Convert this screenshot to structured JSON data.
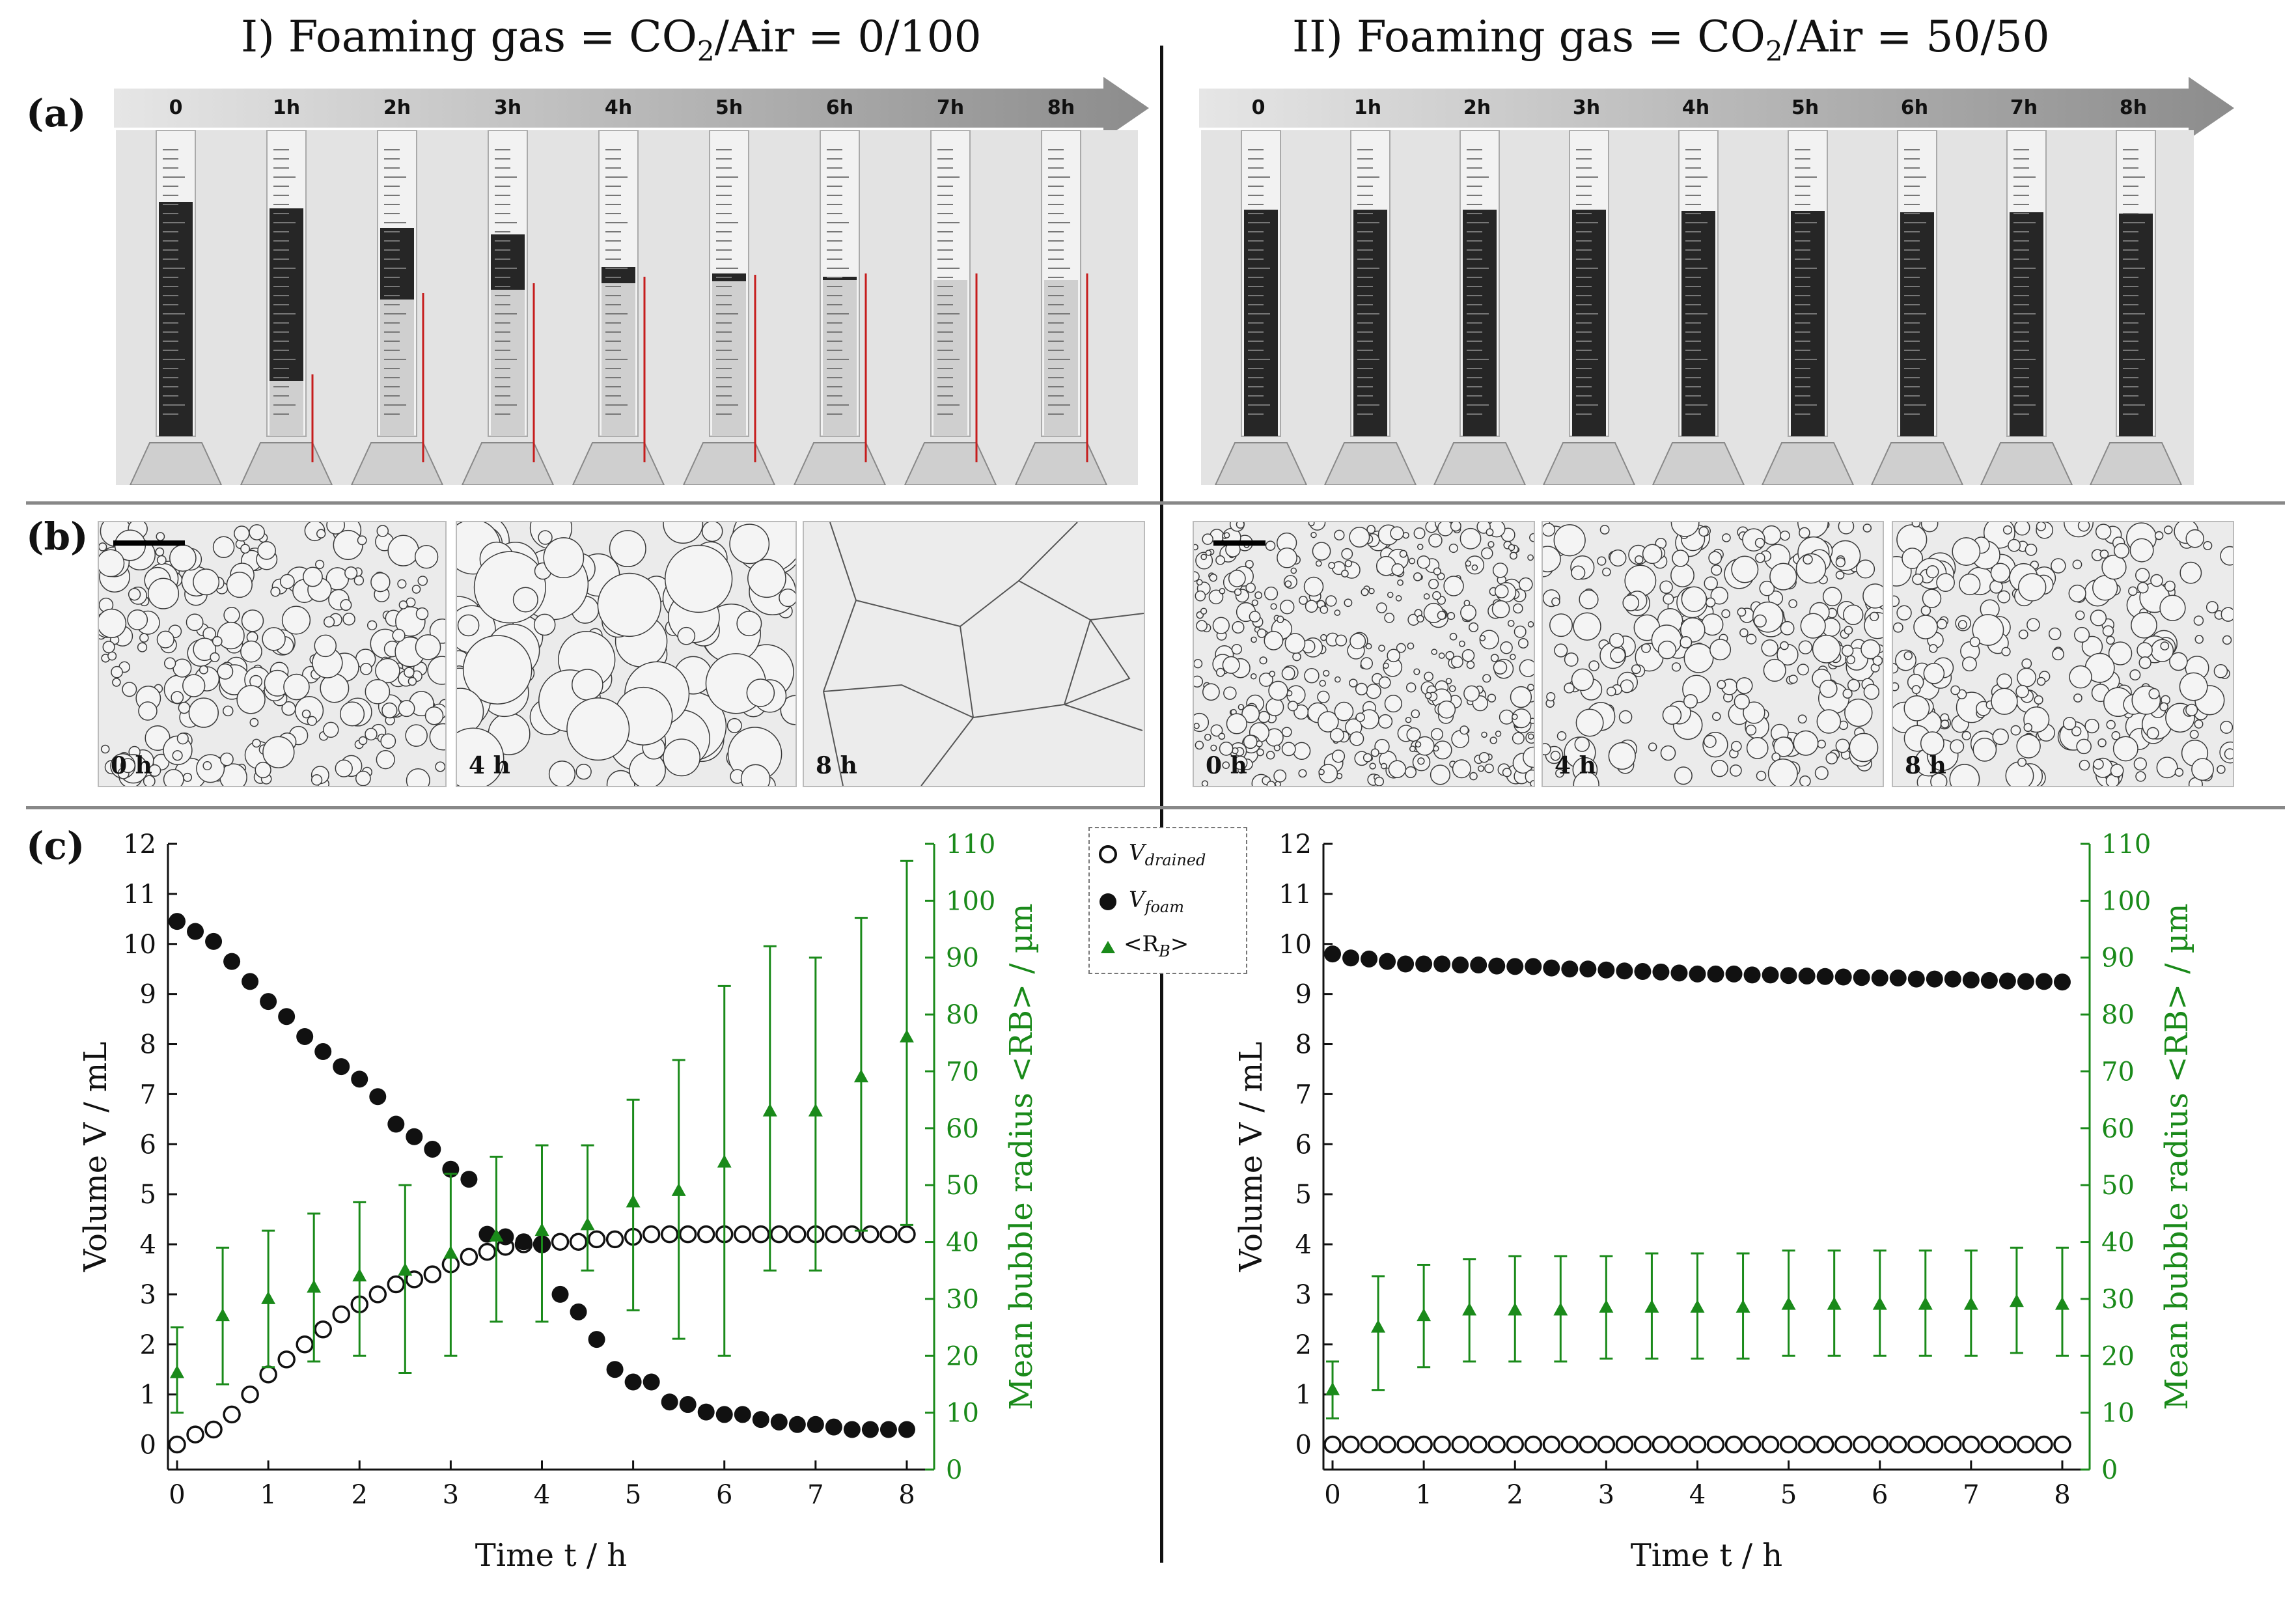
{
  "titles": {
    "left_prefix": "I) Foaming gas = ",
    "left_formula_base": "CO",
    "left_formula_sub": "2",
    "left_formula_rest": "/Air = 0/100",
    "right_prefix": "II) Foaming gas = ",
    "right_formula_base": "CO",
    "right_formula_sub": "2",
    "right_formula_rest": "/Air = 50/50"
  },
  "panels": {
    "a": "(a)",
    "b": "(b)",
    "c": "(c)"
  },
  "timeline_ticks": [
    "0",
    "1h",
    "2h",
    "3h",
    "4h",
    "5h",
    "6h",
    "7h",
    "8h"
  ],
  "micrographs": {
    "left": [
      "0 h",
      "4 h",
      "8 h"
    ],
    "right": [
      "0 h",
      "4 h",
      "8 h"
    ]
  },
  "colors": {
    "green": "#1a8a1a",
    "black": "#111111"
  },
  "legend": {
    "drained_base": "V",
    "drained_sub": "drained",
    "foam_base": "V",
    "foam_sub": "foam",
    "rb_label_a": "<R",
    "rb_label_sub": "B",
    "rb_label_b": ">"
  },
  "chart_data": [
    {
      "type": "scatter",
      "title": "CO2/Air = 0/100",
      "xlabel": "Time t / h",
      "ylabel": "Volume V / mL",
      "y2label": "Mean bubble radius <RB> / µm",
      "xlim": [
        -0.1,
        8.3
      ],
      "ylim": [
        -0.5,
        12
      ],
      "y2lim": [
        0,
        110
      ],
      "xticks": [
        0,
        1,
        2,
        3,
        4,
        5,
        6,
        7,
        8
      ],
      "yticks": [
        0,
        1,
        2,
        3,
        4,
        5,
        6,
        7,
        8,
        9,
        10,
        11,
        12
      ],
      "y2ticks": [
        0,
        10,
        20,
        30,
        40,
        50,
        60,
        70,
        80,
        90,
        100,
        110
      ],
      "series": [
        {
          "name": "V_drained",
          "x": [
            0,
            0.2,
            0.4,
            0.6,
            0.8,
            1.0,
            1.2,
            1.4,
            1.6,
            1.8,
            2.0,
            2.2,
            2.4,
            2.6,
            2.8,
            3.0,
            3.2,
            3.4,
            3.6,
            3.8,
            4.0,
            4.2,
            4.4,
            4.6,
            4.8,
            5.0,
            5.2,
            5.4,
            5.6,
            5.8,
            6.0,
            6.2,
            6.4,
            6.6,
            6.8,
            7.0,
            7.2,
            7.4,
            7.6,
            7.8,
            8.0
          ],
          "values": [
            0,
            0.2,
            0.3,
            0.6,
            1.0,
            1.4,
            1.7,
            2.0,
            2.3,
            2.6,
            2.8,
            3.0,
            3.2,
            3.3,
            3.4,
            3.6,
            3.75,
            3.85,
            3.95,
            4.0,
            4.0,
            4.05,
            4.05,
            4.1,
            4.1,
            4.15,
            4.2,
            4.2,
            4.2,
            4.2,
            4.2,
            4.2,
            4.2,
            4.2,
            4.2,
            4.2,
            4.2,
            4.2,
            4.2,
            4.2,
            4.2
          ]
        },
        {
          "name": "V_foam",
          "x": [
            0,
            0.2,
            0.4,
            0.6,
            0.8,
            1.0,
            1.2,
            1.4,
            1.6,
            1.8,
            2.0,
            2.2,
            2.4,
            2.6,
            2.8,
            3.0,
            3.2,
            3.4,
            3.6,
            3.8,
            4.0,
            4.2,
            4.4,
            4.6,
            4.8,
            5.0,
            5.2,
            5.4,
            5.6,
            5.8,
            6.0,
            6.2,
            6.4,
            6.6,
            6.8,
            7.0,
            7.2,
            7.4,
            7.6,
            7.8,
            8.0
          ],
          "values": [
            10.45,
            10.25,
            10.05,
            9.65,
            9.25,
            8.85,
            8.55,
            8.15,
            7.85,
            7.55,
            7.3,
            6.95,
            6.4,
            6.15,
            5.9,
            5.5,
            5.3,
            4.2,
            4.15,
            4.05,
            4.0,
            3.0,
            2.65,
            2.1,
            1.5,
            1.25,
            1.25,
            0.85,
            0.8,
            0.65,
            0.6,
            0.6,
            0.5,
            0.45,
            0.4,
            0.4,
            0.35,
            0.3,
            0.3,
            0.3,
            0.3
          ]
        },
        {
          "name": "<RB>",
          "axis": "y2",
          "x": [
            0,
            0.5,
            1.0,
            1.5,
            2.0,
            2.5,
            3.0,
            3.5,
            4.0,
            4.5,
            5.0,
            5.5,
            6.0,
            6.5,
            7.0,
            7.5,
            8.0
          ],
          "values": [
            17,
            27,
            30,
            32,
            34,
            35,
            38,
            41,
            42,
            43,
            47,
            49,
            54,
            63,
            63,
            69,
            76
          ],
          "err_low": [
            10,
            15,
            18,
            19,
            20,
            17,
            20,
            26,
            26,
            35,
            28,
            23,
            20,
            35,
            35,
            42,
            43
          ],
          "err_high": [
            25,
            39,
            42,
            45,
            47,
            50,
            52,
            55,
            57,
            57,
            65,
            72,
            85,
            92,
            90,
            97,
            107
          ]
        }
      ]
    },
    {
      "type": "scatter",
      "title": "CO2/Air = 50/50",
      "xlabel": "Time t / h",
      "ylabel": "Volume V / mL",
      "y2label": "Mean bubble radius <RB> / µm",
      "xlim": [
        -0.1,
        8.3
      ],
      "ylim": [
        -0.5,
        12
      ],
      "y2lim": [
        0,
        110
      ],
      "xticks": [
        0,
        1,
        2,
        3,
        4,
        5,
        6,
        7,
        8
      ],
      "yticks": [
        0,
        1,
        2,
        3,
        4,
        5,
        6,
        7,
        8,
        9,
        10,
        11,
        12
      ],
      "y2ticks": [
        0,
        10,
        20,
        30,
        40,
        50,
        60,
        70,
        80,
        90,
        100,
        110
      ],
      "series": [
        {
          "name": "V_drained",
          "x": [
            0,
            0.2,
            0.4,
            0.6,
            0.8,
            1.0,
            1.2,
            1.4,
            1.6,
            1.8,
            2.0,
            2.2,
            2.4,
            2.6,
            2.8,
            3.0,
            3.2,
            3.4,
            3.6,
            3.8,
            4.0,
            4.2,
            4.4,
            4.6,
            4.8,
            5.0,
            5.2,
            5.4,
            5.6,
            5.8,
            6.0,
            6.2,
            6.4,
            6.6,
            6.8,
            7.0,
            7.2,
            7.4,
            7.6,
            7.8,
            8.0
          ],
          "values": [
            0,
            0,
            0,
            0,
            0,
            0,
            0,
            0,
            0,
            0,
            0,
            0,
            0,
            0,
            0,
            0,
            0,
            0,
            0,
            0,
            0,
            0,
            0,
            0,
            0,
            0,
            0,
            0,
            0,
            0,
            0,
            0,
            0,
            0,
            0,
            0,
            0,
            0,
            0,
            0,
            0
          ]
        },
        {
          "name": "V_foam",
          "x": [
            0,
            0.2,
            0.4,
            0.6,
            0.8,
            1.0,
            1.2,
            1.4,
            1.6,
            1.8,
            2.0,
            2.2,
            2.4,
            2.6,
            2.8,
            3.0,
            3.2,
            3.4,
            3.6,
            3.8,
            4.0,
            4.2,
            4.4,
            4.6,
            4.8,
            5.0,
            5.2,
            5.4,
            5.6,
            5.8,
            6.0,
            6.2,
            6.4,
            6.6,
            6.8,
            7.0,
            7.2,
            7.4,
            7.6,
            7.8,
            8.0
          ],
          "values": [
            9.8,
            9.72,
            9.7,
            9.65,
            9.6,
            9.6,
            9.6,
            9.58,
            9.58,
            9.56,
            9.55,
            9.55,
            9.52,
            9.5,
            9.5,
            9.48,
            9.46,
            9.45,
            9.44,
            9.42,
            9.4,
            9.4,
            9.4,
            9.38,
            9.38,
            9.37,
            9.36,
            9.35,
            9.34,
            9.33,
            9.32,
            9.32,
            9.3,
            9.3,
            9.3,
            9.28,
            9.27,
            9.26,
            9.25,
            9.25,
            9.24
          ]
        },
        {
          "name": "<RB>",
          "axis": "y2",
          "x": [
            0,
            0.5,
            1.0,
            1.5,
            2.0,
            2.5,
            3.0,
            3.5,
            4.0,
            4.5,
            5.0,
            5.5,
            6.0,
            6.5,
            7.0,
            7.5,
            8.0
          ],
          "values": [
            14,
            25,
            27,
            28,
            28,
            28,
            28.5,
            28.5,
            28.5,
            28.5,
            29,
            29,
            29,
            29,
            29,
            29.5,
            29
          ],
          "err_low": [
            9,
            14,
            18,
            19,
            19,
            19,
            19.5,
            19.5,
            19.5,
            19.5,
            20,
            20,
            20,
            20,
            20,
            20.5,
            20
          ],
          "err_high": [
            19,
            34,
            36,
            37,
            37.5,
            37.5,
            37.5,
            38,
            38,
            38,
            38.5,
            38.5,
            38.5,
            38.5,
            38.5,
            39,
            39
          ]
        }
      ]
    }
  ]
}
